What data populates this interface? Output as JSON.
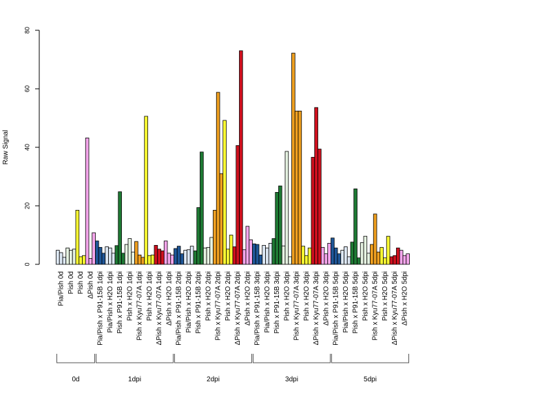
{
  "chart_data": {
    "type": "bar",
    "title": "",
    "xlabel": "",
    "ylabel": "Raw Signal",
    "ylim": [
      0,
      80
    ],
    "yticks": [
      0,
      20,
      40,
      60,
      80
    ],
    "grid": false,
    "legend": "none",
    "colors": {
      "Pia/Pish": "#dde8f4",
      "Pia/Pish x P91-15B": "#1f5799",
      "Pia/Pish x H2O": "#dde8f4",
      "Pish x P91-15B": "#1e7a34",
      "Pish x H2O": "#e6f3e2",
      "Pish x Kyu77-07A": "#f0a020",
      "Pish": "#ffff33",
      "Pish x H2O yellow": "#ffff33",
      "ΔPish x Kyu77-07A": "#d0101e",
      "ΔPish x H2O": "#f5a6ec"
    },
    "groups": [
      {
        "label": "0d",
        "categories": [
          {
            "label": "Pia/Pish 0d",
            "color": "#dde8f4",
            "values": [
              4.8,
              4.0,
              2.4
            ]
          },
          {
            "label": "Pish 0d",
            "color": "#e6f3e2",
            "values": [
              5.6,
              4.8,
              5.2
            ]
          },
          {
            "label": "Pish 0d",
            "color": "#ffff33",
            "values": [
              18.5,
              2.6,
              3.0
            ]
          },
          {
            "label": "ΔPish 0d",
            "color": "#f5a6ec",
            "values": [
              43.2,
              2.0,
              10.8
            ]
          }
        ]
      },
      {
        "label": "1dpi",
        "categories": [
          {
            "label": "Pia/Pish x P91-15B 1dpi",
            "color": "#1f5799",
            "values": [
              8.0,
              5.8,
              3.8
            ]
          },
          {
            "label": "Pia/Pish x H2O 1dpi",
            "color": "#dde8f4",
            "values": [
              6.0,
              5.6,
              3.8
            ]
          },
          {
            "label": "Pish x P91-15B 1dpi",
            "color": "#1e7a34",
            "values": [
              6.4,
              24.8,
              3.8
            ]
          },
          {
            "label": "Pish x H2O 1dpi",
            "color": "#e6f3e2",
            "values": [
              6.8,
              8.8,
              4.2
            ]
          },
          {
            "label": "Pish x Kyu77-07A 1dpi",
            "color": "#f0a020",
            "values": [
              7.8,
              3.2,
              2.4
            ]
          },
          {
            "label": "Pish x H2O 1dpi",
            "color": "#ffff33",
            "values": [
              50.6,
              3.0,
              3.2
            ]
          },
          {
            "label": "ΔPish x Kyu77-07A 1dpi",
            "color": "#d0101e",
            "values": [
              6.5,
              5.2,
              4.6
            ]
          },
          {
            "label": "ΔPish x H2O 1dpi",
            "color": "#f5a6ec",
            "values": [
              8.0,
              3.8,
              3.2
            ]
          }
        ]
      },
      {
        "label": "2dpi",
        "categories": [
          {
            "label": "Pia/Pish x P91-15B 2dpi",
            "color": "#1f5799",
            "values": [
              5.4,
              6.2,
              3.6
            ]
          },
          {
            "label": "Pia/Pish x H2O 2dpi",
            "color": "#dde8f4",
            "values": [
              4.8,
              5.0,
              6.2
            ]
          },
          {
            "label": "Pish x P91-15B 2dpi",
            "color": "#1e7a34",
            "values": [
              4.6,
              19.4,
              38.4
            ]
          },
          {
            "label": "Pish x H2O 2dpi",
            "color": "#e6f3e2",
            "values": [
              5.6,
              5.8,
              9.2
            ]
          },
          {
            "label": "Pish x Kyu77-07A 2dpi",
            "color": "#f0a020",
            "values": [
              18.5,
              58.8,
              31.0
            ]
          },
          {
            "label": "Pish x H2O 2dpi",
            "color": "#ffff33",
            "values": [
              49.2,
              5.2,
              10.0
            ]
          },
          {
            "label": "ΔPish x Kyu77-07A 2dpi",
            "color": "#d0101e",
            "values": [
              6.0,
              40.6,
              73.0
            ]
          },
          {
            "label": "ΔPish x H2O 2dpi",
            "color": "#f5a6ec",
            "values": [
              5.0,
              13.0,
              8.4
            ]
          }
        ]
      },
      {
        "label": "3dpi",
        "categories": [
          {
            "label": "Pia/Pish x P91-15B 3dpi",
            "color": "#1f5799",
            "values": [
              7.0,
              6.8,
              3.2
            ]
          },
          {
            "label": "Pia/Pish x H2O 3dpi",
            "color": "#dde8f4",
            "values": [
              6.5,
              5.6,
              7.2
            ]
          },
          {
            "label": "Pish x P91-15B 3dpi",
            "color": "#1e7a34",
            "values": [
              8.8,
              24.6,
              26.8
            ]
          },
          {
            "label": "Pish x H2O 3dpi",
            "color": "#e6f3e2",
            "values": [
              6.3,
              38.6,
              2.6
            ]
          },
          {
            "label": "Pish x Kyu77-07A 3dpi",
            "color": "#f0a020",
            "values": [
              72.2,
              52.4,
              52.4
            ]
          },
          {
            "label": "Pish x H2O 3dpi",
            "color": "#ffff33",
            "values": [
              6.2,
              3.0,
              5.6
            ]
          },
          {
            "label": "ΔPish x Kyu77-07A 3dpi",
            "color": "#d0101e",
            "values": [
              36.6,
              53.6,
              39.4
            ]
          },
          {
            "label": "ΔPish x H2O 3dpi",
            "color": "#f5a6ec",
            "values": [
              5.8,
              3.6,
              7.2
            ]
          }
        ]
      },
      {
        "label": "5dpi",
        "categories": [
          {
            "label": "Pia/Pish x P91-15B 5dpi",
            "color": "#1f5799",
            "values": [
              9.0,
              5.6,
              3.6
            ]
          },
          {
            "label": "Pia/Pish x H2O 5dpi",
            "color": "#dde8f4",
            "values": [
              4.8,
              6.0,
              2.6
            ]
          },
          {
            "label": "Pish x P91-15B 5dpi",
            "color": "#1e7a34",
            "values": [
              7.6,
              25.8,
              2.2
            ]
          },
          {
            "label": "Pish x H2O 5dpi",
            "color": "#e6f3e2",
            "values": [
              7.4,
              9.6,
              3.8
            ]
          },
          {
            "label": "Pish x Kyu77-07A 5dpi",
            "color": "#f0a020",
            "values": [
              6.8,
              17.2,
              4.2
            ]
          },
          {
            "label": "Pish x H2O 5dpi",
            "color": "#ffff33",
            "values": [
              5.8,
              2.2,
              9.6
            ]
          },
          {
            "label": "ΔPish x Kyu77-07A 5dpi",
            "color": "#d0101e",
            "values": [
              2.6,
              3.0,
              5.6
            ]
          },
          {
            "label": "ΔPish x H2O 5dpi",
            "color": "#f5a6ec",
            "values": [
              4.8,
              3.0,
              3.6
            ]
          }
        ]
      }
    ]
  }
}
